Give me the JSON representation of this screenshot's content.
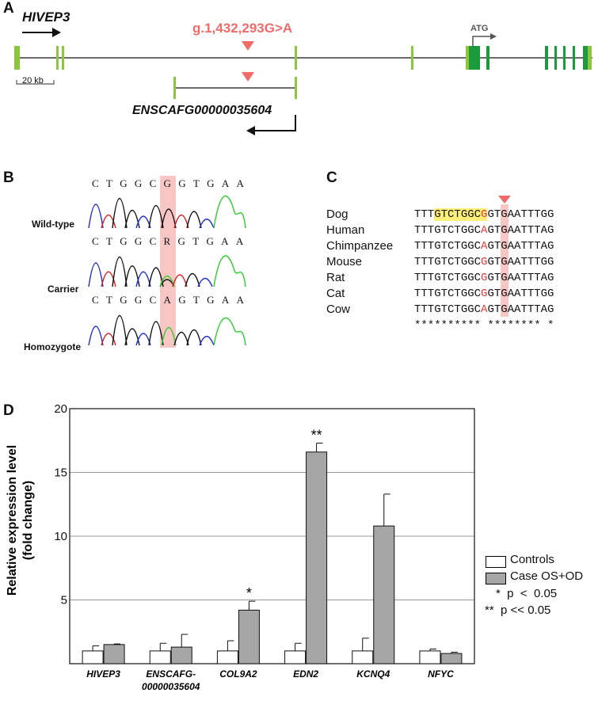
{
  "panelA": {
    "letter": "A",
    "gene_name": "HIVEP3",
    "variant": "g.1,432,293G>A",
    "atg_label": "ATG",
    "scale_label": "20 kb",
    "transcript_name": "ENSCAFG00000035604",
    "colors": {
      "exon_light": "#8cc63f",
      "exon_dark": "#1a9a3c",
      "variant": "#f26b6b"
    }
  },
  "panelB": {
    "letter": "B",
    "traces": [
      {
        "label": "Wild-type",
        "sequence": "CTGGCGGTGAA"
      },
      {
        "label": "Carrier",
        "sequence": "CTGGCRGTGAA"
      },
      {
        "label": "Homozygote",
        "sequence": "CTGGCAGTGAA"
      }
    ]
  },
  "panelC": {
    "letter": "C",
    "species": [
      {
        "name": "Dog",
        "pre": "TTT",
        "hl": "GTCTGGC",
        "site": "G",
        "post": "GTGAATTTGG"
      },
      {
        "name": "Human",
        "pre": "TTT",
        "hl": "GTCTGGC",
        "site": "A",
        "post": "GTGAATTTAG"
      },
      {
        "name": "Chimpanzee",
        "pre": "TTT",
        "hl": "GTCTGGC",
        "site": "A",
        "post": "GTGAATTTAG"
      },
      {
        "name": "Mouse",
        "pre": "TTT",
        "hl": "GTCTGGC",
        "site": "G",
        "post": "GTGAATTTGG"
      },
      {
        "name": "Rat",
        "pre": "TTT",
        "hl": "GTCTGGC",
        "site": "G",
        "post": "GTGAATTTAG"
      },
      {
        "name": "Cat",
        "pre": "TTT",
        "hl": "GTCTGGC",
        "site": "G",
        "post": "GTGAATTTGG"
      },
      {
        "name": "Cow",
        "pre": "TTT",
        "hl": "GTCTGGC",
        "site": "A",
        "post": "GTGAATTTAG"
      }
    ],
    "conservation": "********** ******** *",
    "colors": {
      "highlight": "#fff07a",
      "site_band": "#f9c6c6",
      "site_text": "#e23a3a"
    }
  },
  "panelD": {
    "letter": "D",
    "legend": {
      "controls": "Controls",
      "case": "Case OS+OD",
      "sig1": "*  p  <  0.05",
      "sig2": "**  p << 0.05"
    }
  },
  "chart_data": {
    "type": "bar",
    "ylabel": "Relative expression level (fold change)",
    "ylim": [
      0,
      20
    ],
    "yticks": [
      "5",
      "10",
      "15",
      "20"
    ],
    "categories": [
      "HIVEP3",
      "ENSCAFG-\n00000035604",
      "COL9A2",
      "EDN2",
      "KCNQ4",
      "NFYC"
    ],
    "series": [
      {
        "name": "Controls",
        "color": "#ffffff",
        "values": [
          1.0,
          1.0,
          1.0,
          1.0,
          1.0,
          1.0
        ],
        "errors": [
          0.4,
          0.6,
          0.8,
          0.6,
          1.0,
          0.15
        ]
      },
      {
        "name": "Case OS+OD",
        "color": "#a6a6a6",
        "values": [
          1.5,
          1.3,
          4.2,
          16.6,
          10.8,
          0.8
        ],
        "errors": [
          0.05,
          1.0,
          0.7,
          0.7,
          2.5,
          0.1
        ]
      }
    ],
    "significance": [
      "",
      "",
      "*",
      "**",
      "",
      ""
    ],
    "grid": true,
    "legend_position": "right"
  }
}
